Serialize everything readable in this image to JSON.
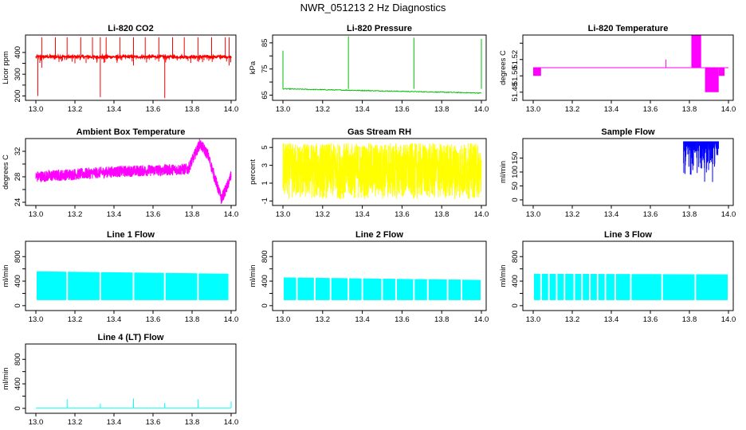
{
  "main_title": "NWR_051213  2 Hz Diagnostics",
  "chart_data": [
    {
      "type": "line",
      "title": "Li-820 CO2",
      "ylabel": "Licor ppm",
      "color": "#ff0000",
      "xlim": [
        13.0,
        14.0
      ],
      "ylim": [
        180,
        480
      ],
      "x_ticks": [
        "13.0",
        "13.2",
        "13.4",
        "13.6",
        "13.8",
        "14.0"
      ],
      "y_ticks": [
        200,
        250,
        300,
        350,
        400
      ],
      "y_tick_labels": [
        "200",
        "",
        "300",
        "",
        "400"
      ],
      "series": [
        {
          "name": "Li-820 CO2",
          "baseline": 380,
          "noise": 6,
          "spikes_up": [
            13.03,
            13.1,
            13.16,
            13.23,
            13.29,
            13.33,
            13.36,
            13.43,
            13.5,
            13.56,
            13.63,
            13.7,
            13.76,
            13.83,
            13.9,
            13.97,
            13.99
          ],
          "spike_up_to": 470,
          "spikes_down": [
            [
              13.01,
              200
            ],
            [
              13.33,
              195
            ],
            [
              13.66,
              190
            ],
            [
              13.03,
              330
            ],
            [
              13.2,
              350
            ],
            [
              13.5,
              340
            ],
            [
              13.99,
              340
            ]
          ]
        }
      ]
    },
    {
      "type": "line",
      "title": "Li-820 Pressure",
      "ylabel": "kPa",
      "color": "#00c000",
      "xlim": [
        13.0,
        14.0
      ],
      "ylim": [
        63,
        88
      ],
      "x_ticks": [
        "13.0",
        "13.2",
        "13.4",
        "13.6",
        "13.8",
        "14.0"
      ],
      "y_ticks": [
        65,
        70,
        75,
        80,
        85
      ],
      "y_tick_labels": [
        "65",
        "",
        "75",
        "",
        "85"
      ],
      "series": [
        {
          "name": "Li-820 Pressure",
          "start": 67.4,
          "end": 65.8,
          "noise": 0.15,
          "spikes_up": [
            [
              13.0,
              82
            ],
            [
              13.33,
              87.5
            ],
            [
              13.66,
              87
            ],
            [
              14.0,
              86.5
            ]
          ]
        }
      ]
    },
    {
      "type": "line",
      "title": "Li-820 Temperature",
      "ylabel": "degrees C",
      "color": "#ff00ff",
      "xlim": [
        13.0,
        14.0
      ],
      "ylim": [
        51.47,
        51.55
      ],
      "x_ticks": [
        "13.0",
        "13.2",
        "13.4",
        "13.6",
        "13.8",
        "14.0"
      ],
      "y_ticks": [
        51.48,
        51.5,
        51.52,
        51.54
      ],
      "y_tick_labels": [
        "51.48",
        "51.50",
        "51.52",
        ""
      ],
      "series": [
        {
          "name": "Li-820 Temperature",
          "baseline": 51.51,
          "blocks": [
            [
              13.0,
              13.04,
              51.5,
              51.51
            ],
            [
              13.81,
              13.86,
              51.51,
              51.55
            ],
            [
              13.83,
              13.85,
              51.51,
              51.545
            ],
            [
              13.88,
              13.95,
              51.48,
              51.51
            ],
            [
              13.95,
              13.98,
              51.5,
              51.51
            ]
          ],
          "spike": [
            13.68,
            51.52
          ]
        }
      ]
    },
    {
      "type": "line",
      "title": "Ambient Box Temperature",
      "ylabel": "degrees C",
      "color": "#ff00ff",
      "xlim": [
        13.0,
        14.0
      ],
      "ylim": [
        23.5,
        34
      ],
      "x_ticks": [
        "13.0",
        "13.2",
        "13.4",
        "13.6",
        "13.8",
        "14.0"
      ],
      "y_ticks": [
        24,
        26,
        28,
        30,
        32
      ],
      "y_tick_labels": [
        "24",
        "",
        "28",
        "",
        "32"
      ],
      "series": [
        {
          "name": "Ambient Box Temperature",
          "profile": [
            [
              13.0,
              28.0
            ],
            [
              13.2,
              28.4
            ],
            [
              13.4,
              28.8
            ],
            [
              13.6,
              29.0
            ],
            [
              13.78,
              29.2
            ],
            [
              13.84,
              33.2
            ],
            [
              13.88,
              31.5
            ],
            [
              13.92,
              27.5
            ],
            [
              13.95,
              24.5
            ],
            [
              13.98,
              26.5
            ],
            [
              14.0,
              28.2
            ]
          ],
          "noise": 0.9
        }
      ]
    },
    {
      "type": "line",
      "title": "Gas Stream RH",
      "ylabel": "percent",
      "color": "#ffff00",
      "xlim": [
        13.0,
        14.0
      ],
      "ylim": [
        -1.5,
        6
      ],
      "x_ticks": [
        "13.0",
        "13.2",
        "13.4",
        "13.6",
        "13.8",
        "14.0"
      ],
      "y_ticks": [
        -1,
        1,
        3,
        5
      ],
      "y_tick_labels": [
        "-1",
        "1",
        "3",
        "5"
      ],
      "series": [
        {
          "name": "Gas Stream RH",
          "low": -0.8,
          "high": 5.5
        }
      ]
    },
    {
      "type": "line",
      "title": "Sample Flow",
      "ylabel": "ml/min",
      "color": "#0000ff",
      "xlim": [
        13.0,
        14.0
      ],
      "ylim": [
        -20,
        220
      ],
      "x_ticks": [
        "13.0",
        "13.2",
        "13.4",
        "13.6",
        "13.8",
        "14.0"
      ],
      "y_ticks": [
        0,
        50,
        100,
        150
      ],
      "y_tick_labels": [
        "0",
        "50",
        "100",
        "150"
      ],
      "series": [
        {
          "name": "Sample Flow",
          "start": 13.77,
          "end": 13.95,
          "top": 210,
          "min_low": 55
        }
      ]
    },
    {
      "type": "line",
      "title": "Line 1 Flow",
      "ylabel": "ml/min",
      "color": "#00ffff",
      "xlim": [
        13.0,
        14.0
      ],
      "ylim": [
        -80,
        1050
      ],
      "x_ticks": [
        "13.0",
        "13.2",
        "13.4",
        "13.6",
        "13.8",
        "14.0"
      ],
      "y_ticks": [
        0,
        200,
        400,
        600,
        800
      ],
      "y_tick_labels": [
        "0",
        "",
        "400",
        "",
        "800"
      ],
      "series": [
        {
          "name": "Line 1 Flow",
          "start": 13.0,
          "end": 13.99,
          "top_start": 560,
          "top_end": 520,
          "bottom": 90,
          "gaps": [
            13.16,
            13.33,
            13.5,
            13.66,
            13.83
          ]
        }
      ]
    },
    {
      "type": "line",
      "title": "Line 2 Flow",
      "ylabel": "ml/min",
      "color": "#00ffff",
      "xlim": [
        13.0,
        14.0
      ],
      "ylim": [
        -80,
        1050
      ],
      "x_ticks": [
        "13.0",
        "13.2",
        "13.4",
        "13.6",
        "13.8",
        "14.0"
      ],
      "y_ticks": [
        0,
        200,
        400,
        600,
        800
      ],
      "y_tick_labels": [
        "0",
        "",
        "400",
        "",
        "800"
      ],
      "series": [
        {
          "name": "Line 2 Flow",
          "start": 13.0,
          "end": 14.0,
          "top_start": 460,
          "top_end": 420,
          "bottom": 90,
          "gaps": [
            13.07,
            13.16,
            13.24,
            13.33,
            13.4,
            13.5,
            13.57,
            13.66,
            13.73,
            13.83,
            13.9
          ]
        }
      ]
    },
    {
      "type": "line",
      "title": "Line 3 Flow",
      "ylabel": "ml/min",
      "color": "#00ffff",
      "xlim": [
        13.0,
        14.0
      ],
      "ylim": [
        -80,
        1050
      ],
      "x_ticks": [
        "13.0",
        "13.2",
        "13.4",
        "13.6",
        "13.8",
        "14.0"
      ],
      "y_ticks": [
        0,
        200,
        400,
        600,
        800
      ],
      "y_tick_labels": [
        "0",
        "",
        "400",
        "",
        "800"
      ],
      "series": [
        {
          "name": "Line 3 Flow",
          "start": 13.0,
          "end": 14.0,
          "top_start": 520,
          "top_end": 510,
          "bottom": 90,
          "gaps": [
            13.04,
            13.08,
            13.12,
            13.16,
            13.21,
            13.25,
            13.29,
            13.33,
            13.37,
            13.42,
            13.5,
            13.66,
            13.83
          ]
        }
      ]
    },
    {
      "type": "line",
      "title": "Line 4 (LT) Flow",
      "ylabel": "ml/min",
      "color": "#00ffff",
      "xlim": [
        13.0,
        14.0
      ],
      "ylim": [
        -80,
        1050
      ],
      "x_ticks": [
        "13.0",
        "13.2",
        "13.4",
        "13.6",
        "13.8",
        "14.0"
      ],
      "y_ticks": [
        0,
        200,
        400,
        600,
        800
      ],
      "y_tick_labels": [
        "0",
        "",
        "400",
        "",
        "800"
      ],
      "series": [
        {
          "name": "Line 4 (LT) Flow",
          "baseline": 8,
          "spikes": [
            [
              13.16,
              150
            ],
            [
              13.33,
              80
            ],
            [
              13.5,
              160
            ],
            [
              13.66,
              90
            ],
            [
              13.83,
              150
            ],
            [
              14.0,
              110
            ]
          ]
        }
      ]
    }
  ]
}
